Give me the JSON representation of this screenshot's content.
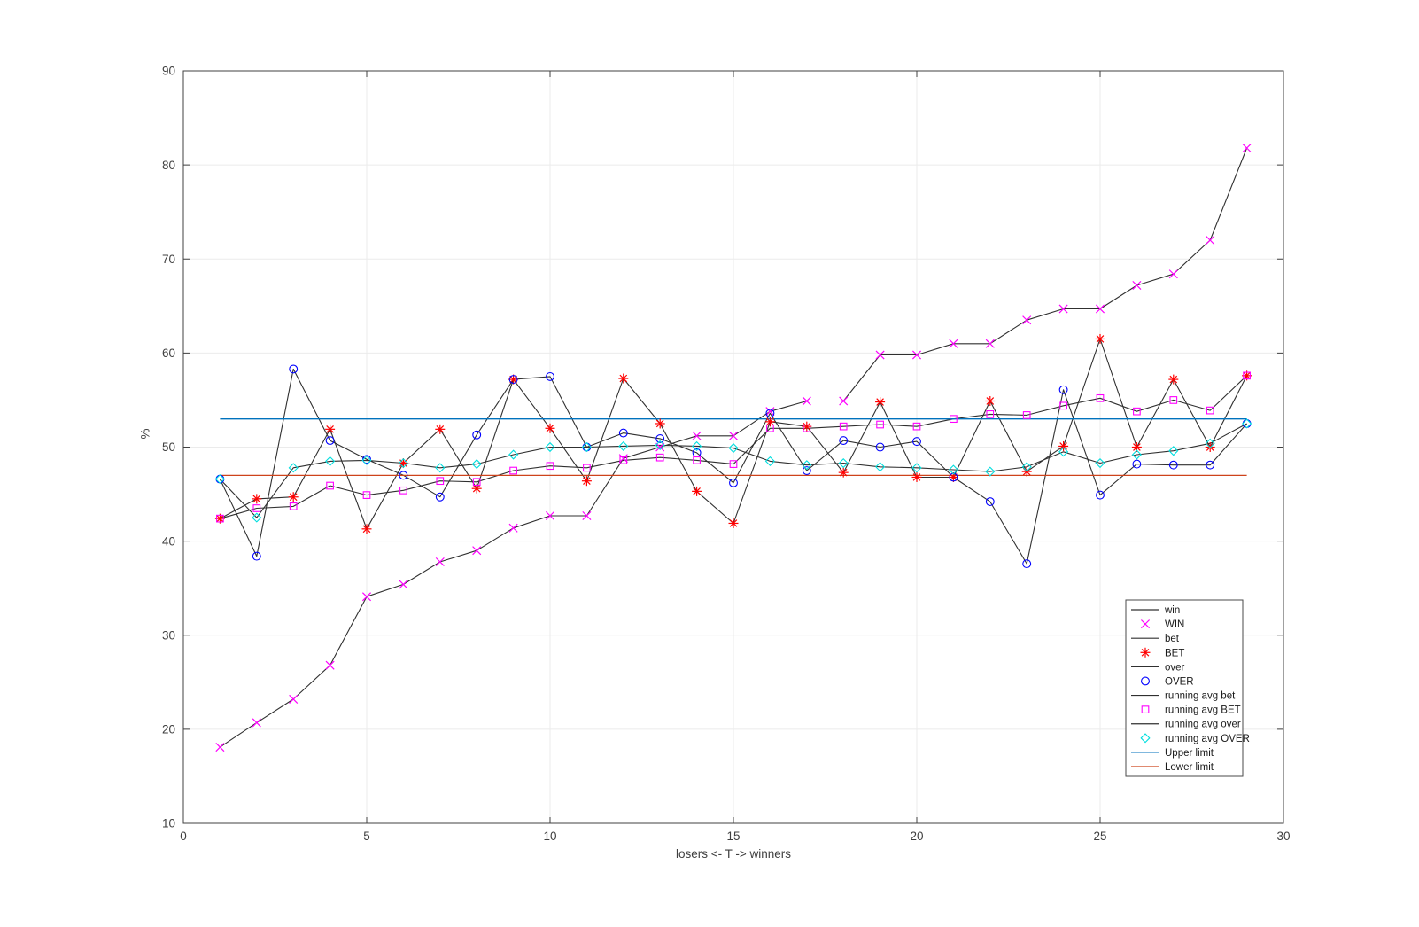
{
  "chart_data": {
    "type": "line",
    "title": "",
    "xlabel": "losers <- T -> winners",
    "ylabel": "%",
    "xlim": [
      0,
      30
    ],
    "ylim": [
      10,
      90
    ],
    "xticks": [
      0,
      5,
      10,
      15,
      20,
      25,
      30
    ],
    "yticks": [
      10,
      20,
      30,
      40,
      50,
      60,
      70,
      80,
      90
    ],
    "grid": true,
    "x": [
      1,
      2,
      3,
      4,
      5,
      6,
      7,
      8,
      9,
      10,
      11,
      12,
      13,
      14,
      15,
      16,
      17,
      18,
      19,
      20,
      21,
      22,
      23,
      24,
      25,
      26,
      27,
      28,
      29
    ],
    "series": [
      {
        "name": "win",
        "type": "line",
        "color": "#303030",
        "values": [
          18.1,
          20.7,
          23.2,
          26.8,
          34.1,
          35.4,
          37.8,
          39.0,
          41.4,
          42.7,
          42.7,
          48.8,
          50.0,
          51.2,
          51.2,
          53.8,
          54.9,
          54.9,
          59.8,
          59.8,
          61.0,
          61.0,
          63.5,
          64.7,
          64.7,
          67.2,
          68.4,
          72.0,
          81.8
        ]
      },
      {
        "name": "WIN",
        "type": "marker",
        "marker": "x",
        "color": "#ff00ff",
        "values": [
          18.1,
          20.7,
          23.2,
          26.8,
          34.1,
          35.4,
          37.8,
          39.0,
          41.4,
          42.7,
          42.7,
          48.8,
          50.0,
          51.2,
          51.2,
          53.8,
          54.9,
          54.9,
          59.8,
          59.8,
          61.0,
          61.0,
          63.5,
          64.7,
          64.7,
          67.2,
          68.4,
          72.0,
          81.8
        ]
      },
      {
        "name": "bet",
        "type": "line",
        "color": "#303030",
        "values": [
          42.4,
          44.5,
          44.7,
          51.9,
          41.3,
          48.3,
          51.9,
          45.6,
          57.2,
          52.0,
          46.4,
          57.3,
          52.5,
          45.3,
          41.9,
          52.7,
          52.2,
          47.3,
          54.8,
          46.8,
          46.8,
          54.9,
          47.4,
          50.1,
          61.5,
          50.0,
          57.2,
          50.0,
          57.6
        ]
      },
      {
        "name": "BET",
        "type": "marker",
        "marker": "asterisk",
        "color": "#ff0000",
        "values": [
          42.4,
          44.5,
          44.7,
          51.9,
          41.3,
          48.3,
          51.9,
          45.6,
          57.2,
          52.0,
          46.4,
          57.3,
          52.5,
          45.3,
          41.9,
          52.7,
          52.2,
          47.3,
          54.8,
          46.8,
          46.8,
          54.9,
          47.4,
          50.1,
          61.5,
          50.0,
          57.2,
          50.0,
          57.6
        ]
      },
      {
        "name": "over",
        "type": "line",
        "color": "#303030",
        "values": [
          46.6,
          38.4,
          58.3,
          50.7,
          48.7,
          47.0,
          44.7,
          51.3,
          57.2,
          57.5,
          50.0,
          51.5,
          50.9,
          49.4,
          46.2,
          53.6,
          47.5,
          50.7,
          50.0,
          50.6,
          46.8,
          44.2,
          37.6,
          56.1,
          44.9,
          48.2,
          48.1,
          48.1,
          52.5
        ]
      },
      {
        "name": "OVER",
        "type": "marker",
        "marker": "circle",
        "color": "#0000ff",
        "values": [
          46.6,
          38.4,
          58.3,
          50.7,
          48.7,
          47.0,
          44.7,
          51.3,
          57.2,
          57.5,
          50.0,
          51.5,
          50.9,
          49.4,
          46.2,
          53.6,
          47.5,
          50.7,
          50.0,
          50.6,
          46.8,
          44.2,
          37.6,
          56.1,
          44.9,
          48.2,
          48.1,
          48.1,
          52.5
        ]
      },
      {
        "name": "running avg bet",
        "type": "line",
        "color": "#303030",
        "values": [
          42.4,
          43.5,
          43.7,
          45.9,
          44.9,
          45.4,
          46.4,
          46.3,
          47.5,
          48.0,
          47.8,
          48.6,
          48.9,
          48.6,
          48.2,
          52.0,
          52.0,
          52.2,
          52.4,
          52.2,
          53.0,
          53.5,
          53.4,
          54.4,
          55.2,
          53.8,
          55.0,
          53.9,
          57.6
        ]
      },
      {
        "name": "running avg BET",
        "type": "marker",
        "marker": "square",
        "color": "#ff00ff",
        "values": [
          42.4,
          43.5,
          43.7,
          45.9,
          44.9,
          45.4,
          46.4,
          46.3,
          47.5,
          48.0,
          47.8,
          48.6,
          48.9,
          48.6,
          48.2,
          52.0,
          52.0,
          52.2,
          52.4,
          52.2,
          53.0,
          53.5,
          53.4,
          54.4,
          55.2,
          53.8,
          55.0,
          53.9,
          57.6
        ]
      },
      {
        "name": "running avg over",
        "type": "line",
        "color": "#303030",
        "values": [
          46.6,
          42.5,
          47.8,
          48.5,
          48.6,
          48.3,
          47.8,
          48.2,
          49.2,
          50.0,
          50.0,
          50.1,
          50.2,
          50.1,
          49.9,
          48.5,
          48.1,
          48.3,
          47.9,
          47.8,
          47.6,
          47.4,
          47.9,
          49.5,
          48.3,
          49.2,
          49.6,
          50.4,
          52.5
        ]
      },
      {
        "name": "running avg OVER",
        "type": "marker",
        "marker": "diamond",
        "color": "#00dede",
        "values": [
          46.6,
          42.5,
          47.8,
          48.5,
          48.6,
          48.3,
          47.8,
          48.2,
          49.2,
          50.0,
          50.0,
          50.1,
          50.2,
          50.1,
          49.9,
          48.5,
          48.1,
          48.3,
          47.9,
          47.8,
          47.6,
          47.4,
          47.9,
          49.5,
          48.3,
          49.2,
          49.6,
          50.4,
          52.5
        ]
      },
      {
        "name": "Upper limit",
        "type": "hline",
        "color": "#0072bd",
        "value": 53.0,
        "x_range": [
          1,
          29
        ]
      },
      {
        "name": "Lower limit",
        "type": "hline",
        "color": "#ce431b",
        "value": 47.0,
        "x_range": [
          1,
          29
        ]
      }
    ],
    "legend": {
      "position": "lower right",
      "entries": [
        {
          "label": "win",
          "sample": "line",
          "color": "#303030"
        },
        {
          "label": "WIN",
          "sample": "x",
          "color": "#ff00ff"
        },
        {
          "label": "bet",
          "sample": "line",
          "color": "#303030"
        },
        {
          "label": "BET",
          "sample": "asterisk",
          "color": "#ff0000"
        },
        {
          "label": "over",
          "sample": "line",
          "color": "#303030"
        },
        {
          "label": "OVER",
          "sample": "circle",
          "color": "#0000ff"
        },
        {
          "label": "running avg bet",
          "sample": "line",
          "color": "#303030"
        },
        {
          "label": "running avg BET",
          "sample": "square",
          "color": "#ff00ff"
        },
        {
          "label": "running avg over",
          "sample": "line",
          "color": "#303030"
        },
        {
          "label": "running avg OVER",
          "sample": "diamond",
          "color": "#00dede"
        },
        {
          "label": "Upper limit",
          "sample": "line",
          "color": "#0072bd"
        },
        {
          "label": "Lower limit",
          "sample": "line",
          "color": "#ce431b"
        }
      ]
    },
    "style": {
      "axis_color": "#404040",
      "grid_color": "#ebebeb",
      "tick_label_color": "#3f3f3f",
      "background": "#ffffff"
    }
  }
}
